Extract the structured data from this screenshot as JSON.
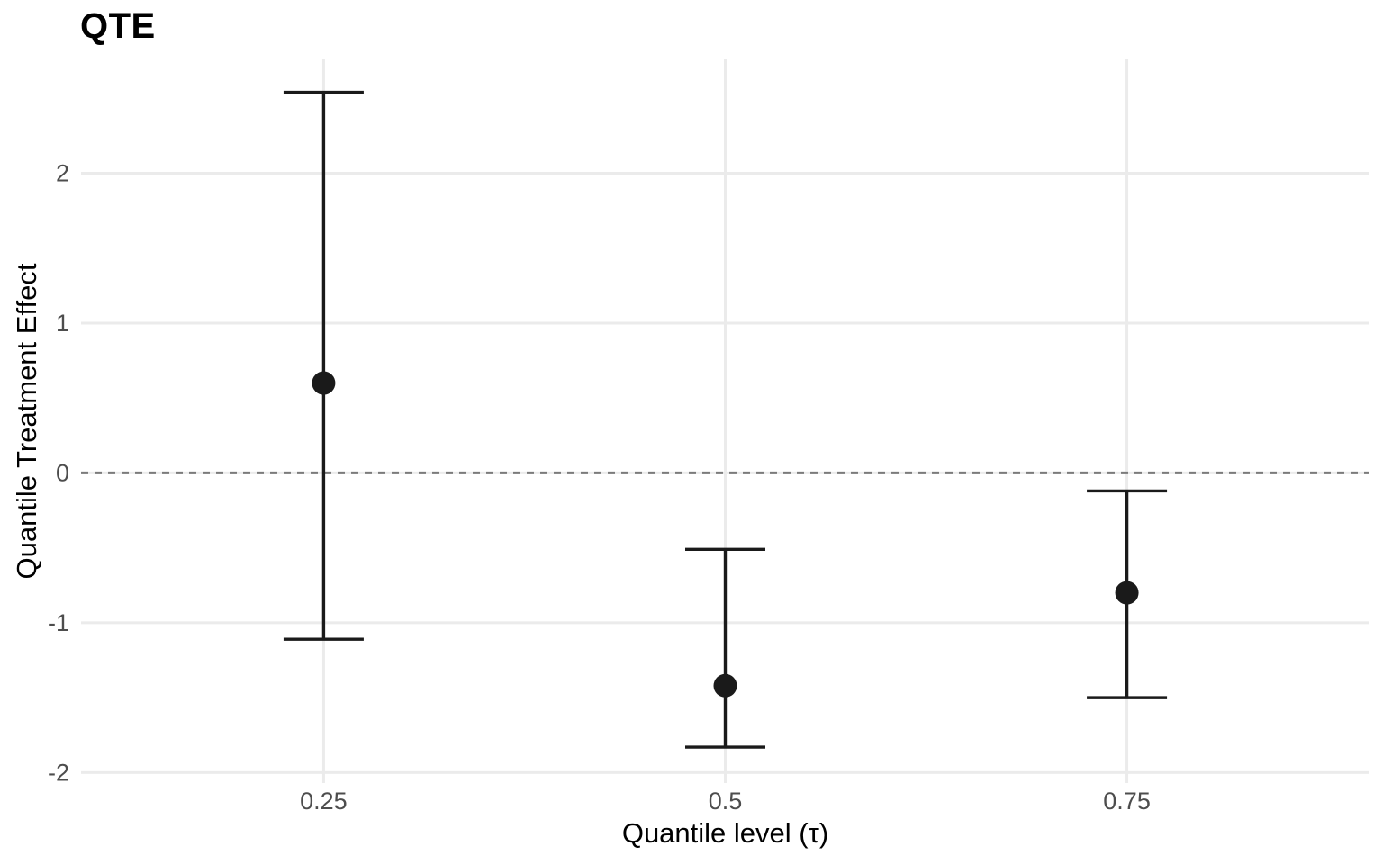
{
  "chart_data": {
    "type": "scatter",
    "subtype": "pointrange-errorbar",
    "title": "QTE",
    "xlabel": "Quantile level (τ)",
    "ylabel": "Quantile Treatment Effect",
    "x_tick_values": [
      0.25,
      0.5,
      0.75
    ],
    "x_tick_labels": [
      "0.25",
      "0.5",
      "0.75"
    ],
    "y_tick_values": [
      -2,
      -1,
      0,
      1,
      2
    ],
    "y_tick_labels": [
      "-2",
      "-1",
      "0",
      "1",
      "2"
    ],
    "xlim": [
      0.099,
      0.901
    ],
    "ylim": [
      -2.07,
      2.76
    ],
    "grid": "major-only",
    "legend": "none",
    "reference_line": {
      "y": 0,
      "style": "dashed"
    },
    "points": [
      {
        "x": 0.25,
        "estimate": 0.6,
        "ci_low": -1.11,
        "ci_high": 2.54
      },
      {
        "x": 0.5,
        "estimate": -1.42,
        "ci_low": -1.83,
        "ci_high": -0.51
      },
      {
        "x": 0.75,
        "estimate": -0.8,
        "ci_low": -1.5,
        "ci_high": -0.12
      }
    ],
    "colors": {
      "point": "#1a1a1a",
      "error_bar": "#1a1a1a",
      "gridline": "#ebebeb",
      "reference_line": "#7b7b7b",
      "tick_label": "#4d4d4d",
      "axis_title": "#000000",
      "background": "#ffffff"
    }
  }
}
